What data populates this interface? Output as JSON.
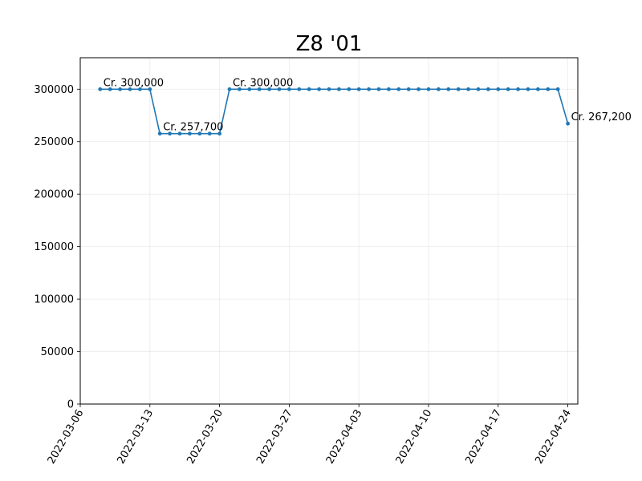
{
  "chart_data": {
    "type": "line",
    "title": "Z8 '01",
    "xlabel": "",
    "ylabel": "",
    "x_start": "2022-03-08",
    "series": [
      {
        "color": "#1f77b4",
        "values": [
          300000,
          300000,
          300000,
          300000,
          300000,
          300000,
          257700,
          257700,
          257700,
          257700,
          257700,
          257700,
          257700,
          300000,
          300000,
          300000,
          300000,
          300000,
          300000,
          300000,
          300000,
          300000,
          300000,
          300000,
          300000,
          300000,
          300000,
          300000,
          300000,
          300000,
          300000,
          300000,
          300000,
          300000,
          300000,
          300000,
          300000,
          300000,
          300000,
          300000,
          300000,
          300000,
          300000,
          300000,
          300000,
          300000,
          300000,
          267200
        ]
      }
    ],
    "ylim": [
      0,
      330000
    ],
    "xlim": [
      "2022-03-06",
      "2022-04-25"
    ],
    "yticks": [
      "0",
      "50000",
      "100000",
      "150000",
      "200000",
      "250000",
      "300000"
    ],
    "xticks": [
      "2022-03-06",
      "2022-03-13",
      "2022-03-20",
      "2022-03-27",
      "2022-04-03",
      "2022-04-10",
      "2022-04-17",
      "2022-04-24"
    ],
    "annotations": [
      {
        "date": "2022-03-08",
        "value": 300000,
        "text": "Cr. 300,000"
      },
      {
        "date": "2022-03-14",
        "value": 257700,
        "text": "Cr. 257,700"
      },
      {
        "date": "2022-03-21",
        "value": 300000,
        "text": "Cr. 300,000"
      },
      {
        "date": "2022-04-24",
        "value": 267200,
        "text": "Cr. 267,200"
      }
    ],
    "grid": true
  }
}
